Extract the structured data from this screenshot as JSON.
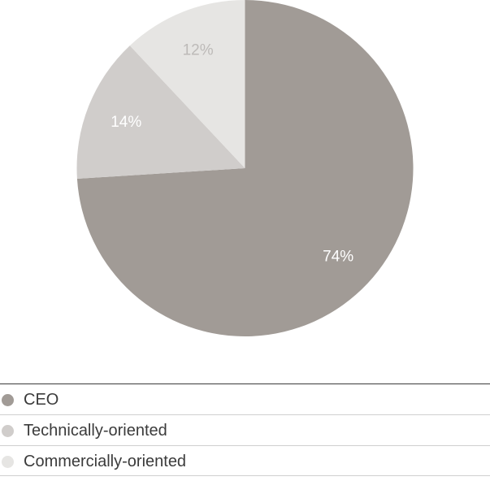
{
  "chart_data": {
    "type": "pie",
    "categories": [
      "CEO",
      "Technically-oriented",
      "Commercially-oriented"
    ],
    "values": [
      74,
      14,
      12
    ],
    "labels": [
      "74%",
      "14%",
      "12%"
    ],
    "colors": [
      "#a19b96",
      "#d0cdcb",
      "#e6e5e3"
    ],
    "label_colors": [
      "#ffffff",
      "#ffffff",
      "#bdbab8"
    ],
    "legend_placement": "bottom",
    "start": "top, clockwise"
  },
  "legend": {
    "items": [
      {
        "label": "CEO",
        "color": "#a19b96"
      },
      {
        "label": "Technically-oriented",
        "color": "#d0cdcb"
      },
      {
        "label": "Commercially-oriented",
        "color": "#e6e5e3"
      }
    ]
  }
}
